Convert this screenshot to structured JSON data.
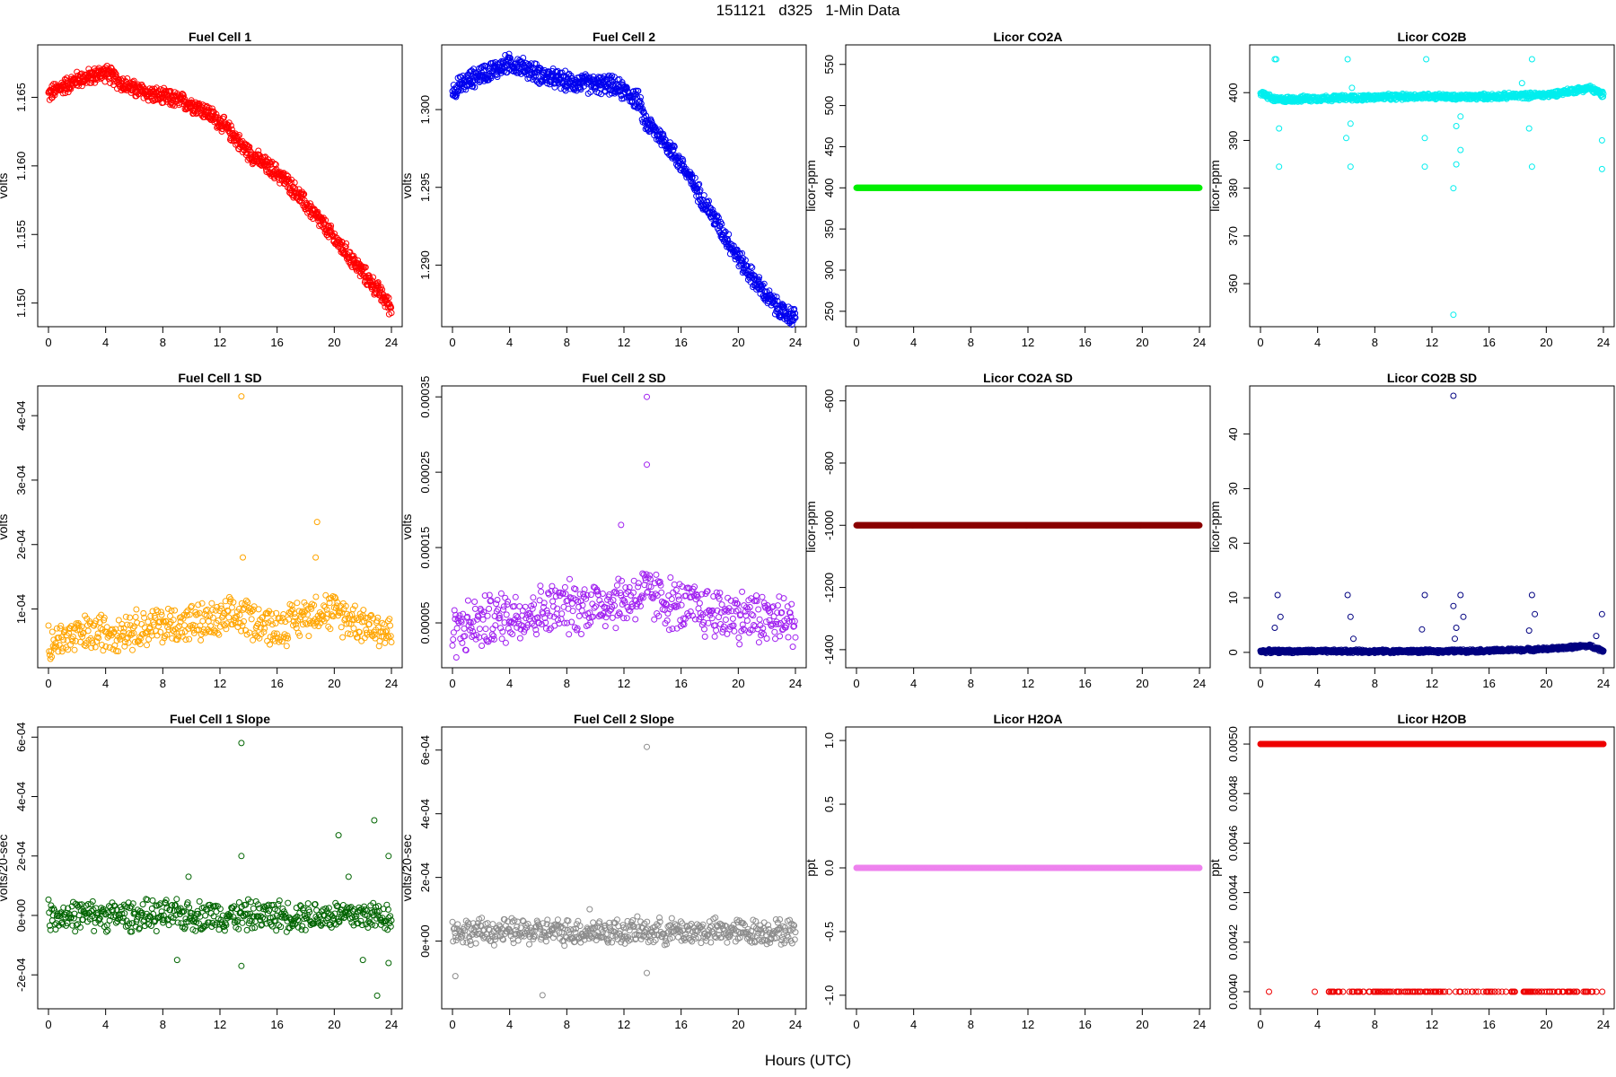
{
  "figure": {
    "title": "151121   d325   1-Min Data",
    "xlabel": "Hours (UTC)"
  },
  "chart_data": [
    {
      "type": "scatter",
      "title": "Fuel Cell 1",
      "ylabel": "volts",
      "color": "#ff0000",
      "xlim": [
        0,
        24
      ],
      "ylim": [
        1.1488,
        1.1683
      ],
      "xticks": [
        "0",
        "4",
        "8",
        "12",
        "16",
        "20",
        "24"
      ],
      "yticks": [
        [
          1.15,
          "1.150"
        ],
        [
          1.155,
          "1.155"
        ],
        [
          1.16,
          "1.160"
        ],
        [
          1.165,
          "1.165"
        ]
      ],
      "points": [
        [
          0,
          1.1652
        ],
        [
          0.5,
          1.1655
        ],
        [
          1,
          1.1658
        ],
        [
          1.5,
          1.166
        ],
        [
          2,
          1.1663
        ],
        [
          2.5,
          1.1664
        ],
        [
          3,
          1.1665
        ],
        [
          3.5,
          1.1667
        ],
        [
          4,
          1.1668
        ],
        [
          4.5,
          1.1665
        ],
        [
          5,
          1.1661
        ],
        [
          6,
          1.1656
        ],
        [
          7,
          1.1653
        ],
        [
          8,
          1.165
        ],
        [
          9,
          1.1648
        ],
        [
          10,
          1.1645
        ],
        [
          11,
          1.164
        ],
        [
          12,
          1.1632
        ],
        [
          13,
          1.1622
        ],
        [
          13.5,
          1.1615
        ],
        [
          14,
          1.161
        ],
        [
          15,
          1.1602
        ],
        [
          16,
          1.1595
        ],
        [
          17,
          1.1585
        ],
        [
          18,
          1.1572
        ],
        [
          19,
          1.156
        ],
        [
          20,
          1.1547
        ],
        [
          21,
          1.1535
        ],
        [
          22,
          1.1522
        ],
        [
          23,
          1.151
        ],
        [
          24,
          1.1496
        ]
      ],
      "band": 0.0006,
      "density": 2
    },
    {
      "type": "scatter",
      "title": "Fuel Cell 2",
      "ylabel": "volts",
      "color": "#0000ee",
      "xlim": [
        0,
        24
      ],
      "ylim": [
        1.2865,
        1.3037
      ],
      "xticks": [
        "0",
        "4",
        "8",
        "12",
        "16",
        "20",
        "24"
      ],
      "yticks": [
        [
          1.29,
          "1.290"
        ],
        [
          1.295,
          "1.295"
        ],
        [
          1.3,
          "1.300"
        ]
      ],
      "points": [
        [
          0,
          1.3012
        ],
        [
          1,
          1.3018
        ],
        [
          2,
          1.3023
        ],
        [
          3,
          1.3026
        ],
        [
          4,
          1.303
        ],
        [
          5,
          1.3027
        ],
        [
          6,
          1.3023
        ],
        [
          7,
          1.302
        ],
        [
          8,
          1.3018
        ],
        [
          9,
          1.3017
        ],
        [
          10,
          1.3016
        ],
        [
          11,
          1.3016
        ],
        [
          12,
          1.3012
        ],
        [
          13,
          1.3006
        ],
        [
          13.5,
          1.2992
        ],
        [
          14,
          1.2988
        ],
        [
          15,
          1.2978
        ],
        [
          16,
          1.2965
        ],
        [
          17,
          1.295
        ],
        [
          18,
          1.2935
        ],
        [
          19,
          1.292
        ],
        [
          20,
          1.2905
        ],
        [
          21,
          1.2892
        ],
        [
          22,
          1.288
        ],
        [
          23,
          1.287
        ],
        [
          24,
          1.2866
        ]
      ],
      "band": 0.0006,
      "density": 2
    },
    {
      "type": "scatter",
      "title": "Licor CO2A",
      "ylabel": "licor-ppm",
      "color": "#00ee00",
      "xlim": [
        0,
        24
      ],
      "ylim": [
        240,
        565
      ],
      "xticks": [
        "0",
        "4",
        "8",
        "12",
        "16",
        "20",
        "24"
      ],
      "yticks": [
        [
          250,
          "250"
        ],
        [
          300,
          "300"
        ],
        [
          350,
          "350"
        ],
        [
          400,
          "400"
        ],
        [
          450,
          "450"
        ],
        [
          500,
          "500"
        ],
        [
          550,
          "550"
        ]
      ],
      "points": [
        [
          0,
          400
        ],
        [
          24,
          400
        ]
      ],
      "band": 0,
      "density": 2
    },
    {
      "type": "scatter",
      "title": "Licor CO2B",
      "ylabel": "licor-ppm",
      "color": "#00eeee",
      "xlim": [
        0,
        24
      ],
      "ylim": [
        352.5,
        408.5
      ],
      "xticks": [
        "0",
        "4",
        "8",
        "12",
        "16",
        "20",
        "24"
      ],
      "yticks": [
        [
          360,
          "360"
        ],
        [
          370,
          "370"
        ],
        [
          380,
          "380"
        ],
        [
          390,
          "390"
        ],
        [
          400,
          "400"
        ]
      ],
      "points": [
        [
          0,
          400
        ],
        [
          1,
          398.5
        ],
        [
          4,
          398.8
        ],
        [
          8,
          399
        ],
        [
          12,
          399.3
        ],
        [
          13.5,
          399
        ],
        [
          16,
          399.2
        ],
        [
          20,
          399.5
        ],
        [
          22,
          400.5
        ],
        [
          23,
          401
        ],
        [
          24,
          399.5
        ]
      ],
      "band": 0.6,
      "density": 2,
      "outliers": [
        [
          1.0,
          407
        ],
        [
          1.1,
          407
        ],
        [
          1.3,
          384.5
        ],
        [
          1.3,
          392.5
        ],
        [
          6,
          390.5
        ],
        [
          6.1,
          407
        ],
        [
          6.3,
          384.5
        ],
        [
          6.3,
          393.5
        ],
        [
          6.4,
          401
        ],
        [
          11.5,
          384.5
        ],
        [
          11.6,
          407
        ],
        [
          11.5,
          390.5
        ],
        [
          13.5,
          353.5
        ],
        [
          13.5,
          380
        ],
        [
          13.7,
          385
        ],
        [
          13.7,
          393
        ],
        [
          14,
          388
        ],
        [
          14,
          395
        ],
        [
          18.8,
          392.5
        ],
        [
          19,
          407
        ],
        [
          19,
          384.5
        ],
        [
          18.3,
          402
        ],
        [
          23.9,
          384
        ],
        [
          23.9,
          390
        ]
      ]
    },
    {
      "type": "scatter",
      "title": "Fuel Cell 1 SD",
      "ylabel": "volts",
      "color": "#ffa500",
      "xlim": [
        0,
        24
      ],
      "ylim": [
        2e-05,
        0.000435
      ],
      "xticks": [
        "0",
        "4",
        "8",
        "12",
        "16",
        "20",
        "24"
      ],
      "yticks": [
        [
          0.0001,
          "1e-04"
        ],
        [
          0.0002,
          "2e-04"
        ],
        [
          0.0003,
          "3e-04"
        ],
        [
          0.0004,
          "4e-04"
        ]
      ],
      "points": [
        [
          0,
          5e-05
        ],
        [
          4,
          6.5e-05
        ],
        [
          8,
          7.5e-05
        ],
        [
          12,
          8e-05
        ],
        [
          13.5,
          9e-05
        ],
        [
          16,
          7e-05
        ],
        [
          19,
          0.0001
        ],
        [
          22,
          8e-05
        ],
        [
          24,
          6e-05
        ]
      ],
      "band": 3e-05,
      "density": 1.2,
      "outliers": [
        [
          13.5,
          0.00043
        ],
        [
          13.6,
          0.00018
        ],
        [
          18.8,
          0.000235
        ],
        [
          18.7,
          0.00018
        ]
      ]
    },
    {
      "type": "scatter",
      "title": "Fuel Cell 2 SD",
      "ylabel": "volts",
      "color": "#a020f0",
      "xlim": [
        0,
        24
      ],
      "ylim": [
        0.0,
        0.000355
      ],
      "xticks": [
        "0",
        "4",
        "8",
        "12",
        "16",
        "20",
        "24"
      ],
      "yticks": [
        [
          5e-05,
          "0.00005"
        ],
        [
          0.00015,
          "0.00015"
        ],
        [
          0.00025,
          "0.00025"
        ],
        [
          0.00035,
          "0.00035"
        ]
      ],
      "points": [
        [
          0,
          4e-05
        ],
        [
          4,
          6e-05
        ],
        [
          8,
          7e-05
        ],
        [
          12,
          8e-05
        ],
        [
          13.5,
          9e-05
        ],
        [
          16,
          7e-05
        ],
        [
          20,
          6e-05
        ],
        [
          24,
          5e-05
        ]
      ],
      "band": 3.5e-05,
      "density": 1.2,
      "outliers": [
        [
          13.6,
          0.00035
        ],
        [
          13.6,
          0.00026
        ],
        [
          11.8,
          0.00018
        ]
      ]
    },
    {
      "type": "scatter",
      "title": "Licor CO2A SD",
      "ylabel": "licor-ppm",
      "color": "#8b0000",
      "xlim": [
        0,
        24
      ],
      "ylim": [
        -1435,
        -575
      ],
      "xticks": [
        "0",
        "4",
        "8",
        "12",
        "16",
        "20",
        "24"
      ],
      "yticks": [
        [
          -1400,
          "-1400"
        ],
        [
          -1200,
          "-1200"
        ],
        [
          -1000,
          "-1000"
        ],
        [
          -800,
          "-800"
        ],
        [
          -600,
          "-600"
        ]
      ],
      "points": [
        [
          0,
          -1000
        ],
        [
          24,
          -1000
        ]
      ],
      "band": 0,
      "density": 2
    },
    {
      "type": "scatter",
      "title": "Licor CO2B SD",
      "ylabel": "licor-ppm",
      "color": "#000080",
      "xlim": [
        0,
        24
      ],
      "ylim": [
        -1.5,
        47.5
      ],
      "xticks": [
        "0",
        "4",
        "8",
        "12",
        "16",
        "20",
        "24"
      ],
      "yticks": [
        [
          0,
          "0"
        ],
        [
          10,
          "10"
        ],
        [
          20,
          "20"
        ],
        [
          30,
          "30"
        ],
        [
          40,
          "40"
        ]
      ],
      "points": [
        [
          0,
          0.2
        ],
        [
          12,
          0.2
        ],
        [
          16,
          0.3
        ],
        [
          20,
          0.6
        ],
        [
          23,
          1.2
        ],
        [
          24,
          0.3
        ]
      ],
      "band": 0.3,
      "density": 2,
      "outliers": [
        [
          13.5,
          47
        ],
        [
          1.2,
          10.5
        ],
        [
          1.4,
          6.5
        ],
        [
          1.0,
          4.5
        ],
        [
          6.1,
          10.5
        ],
        [
          6.3,
          6.5
        ],
        [
          6.5,
          2.5
        ],
        [
          11.5,
          10.5
        ],
        [
          11.3,
          4.2
        ],
        [
          13.5,
          8.5
        ],
        [
          13.7,
          4.5
        ],
        [
          13.6,
          2.5
        ],
        [
          14,
          10.5
        ],
        [
          14.2,
          6.5
        ],
        [
          19,
          10.5
        ],
        [
          19.2,
          7
        ],
        [
          18.8,
          4
        ],
        [
          23.9,
          7
        ],
        [
          23.5,
          3
        ]
      ]
    },
    {
      "type": "scatter",
      "title": "Fuel Cell 1 Slope",
      "ylabel": "volts/20-sec",
      "color": "#006400",
      "xlim": [
        0,
        24
      ],
      "ylim": [
        -0.00029,
        0.00061
      ],
      "xticks": [
        "0",
        "4",
        "8",
        "12",
        "16",
        "20",
        "24"
      ],
      "yticks": [
        [
          -0.0002,
          "-2e-04"
        ],
        [
          0,
          "0e+00"
        ],
        [
          0.0002,
          "2e-04"
        ],
        [
          0.0004,
          "4e-04"
        ],
        [
          0.0006,
          "6e-04"
        ]
      ],
      "points": [
        [
          0,
          0
        ],
        [
          24,
          0
        ]
      ],
      "band": 5e-05,
      "density": 1.2,
      "outliers": [
        [
          13.5,
          0.00058
        ],
        [
          13.5,
          0.0002
        ],
        [
          13.5,
          -0.00017
        ],
        [
          20.3,
          0.00027
        ],
        [
          22.8,
          0.00032
        ],
        [
          23.0,
          -0.00027
        ],
        [
          22.0,
          -0.00015
        ],
        [
          23.8,
          -0.00016
        ],
        [
          23.8,
          0.0002
        ],
        [
          9.0,
          -0.00015
        ],
        [
          9.8,
          0.00013
        ],
        [
          21,
          0.00013
        ]
      ]
    },
    {
      "type": "scatter",
      "title": "Fuel Cell 2 Slope",
      "ylabel": "volts/20-sec",
      "color": "#8c8c8c",
      "xlim": [
        0,
        24
      ],
      "ylim": [
        -0.00019,
        0.00065
      ],
      "xticks": [
        "0",
        "4",
        "8",
        "12",
        "16",
        "20",
        "24"
      ],
      "yticks": [
        [
          0,
          "0e+00"
        ],
        [
          0.0002,
          "2e-04"
        ],
        [
          0.0004,
          "4e-04"
        ],
        [
          0.0006,
          "6e-04"
        ]
      ],
      "points": [
        [
          0,
          3e-05
        ],
        [
          24,
          3e-05
        ]
      ],
      "band": 4e-05,
      "density": 1.2,
      "outliers": [
        [
          13.6,
          0.00061
        ],
        [
          6.3,
          -0.00017
        ],
        [
          0.2,
          -0.00011
        ],
        [
          13.6,
          -0.0001
        ],
        [
          9.6,
          0.0001
        ]
      ]
    },
    {
      "type": "scatter",
      "title": "Licor H2OA",
      "ylabel": "ppt",
      "color": "#ee82ee",
      "xlim": [
        0,
        24
      ],
      "ylim": [
        -1.05,
        1.05
      ],
      "xticks": [
        "0",
        "4",
        "8",
        "12",
        "16",
        "20",
        "24"
      ],
      "yticks": [
        [
          -1,
          "-1.0"
        ],
        [
          -0.5,
          "-0.5"
        ],
        [
          0,
          "0.0"
        ],
        [
          0.5,
          "0.5"
        ],
        [
          1,
          "1.0"
        ]
      ],
      "points": [
        [
          0,
          0
        ],
        [
          24,
          0
        ]
      ],
      "band": 0,
      "density": 2
    },
    {
      "type": "scatter",
      "title": "Licor H2OB",
      "ylabel": "ppt",
      "color": "#ee0000",
      "xlim": [
        0,
        24
      ],
      "ylim": [
        0.00396,
        0.00504
      ],
      "xticks": [
        "0",
        "4",
        "8",
        "12",
        "16",
        "20",
        "24"
      ],
      "yticks": [
        [
          0.004,
          "0.0040"
        ],
        [
          0.0042,
          "0.0042"
        ],
        [
          0.0044,
          "0.0044"
        ],
        [
          0.0046,
          "0.0046"
        ],
        [
          0.0048,
          "0.0048"
        ],
        [
          0.005,
          "0.0050"
        ]
      ],
      "points": [
        [
          0,
          0.005
        ],
        [
          24,
          0.005
        ]
      ],
      "band": 0,
      "density": 2,
      "lower": [
        [
          0.6,
          0.004
        ],
        [
          3.8,
          0.004
        ],
        [
          4.6,
          0.004
        ],
        [
          24,
          0.004
        ]
      ]
    }
  ]
}
